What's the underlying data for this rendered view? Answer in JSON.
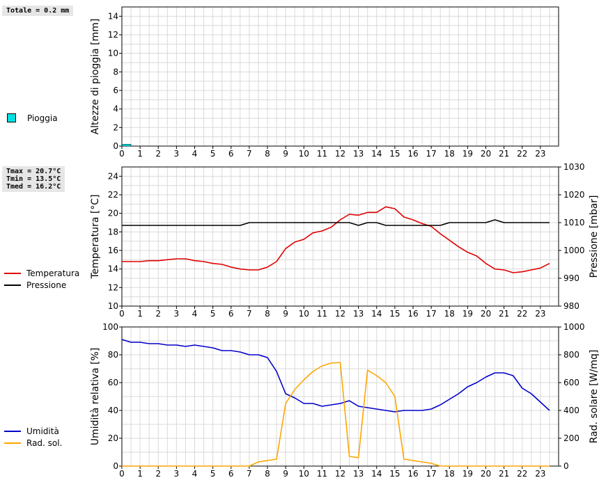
{
  "summary": {
    "rain_total": "Totale = 0.2 mm",
    "tmax": "Tmax = 20.7°C",
    "tmin": "Tmin = 13.5°C",
    "tmed": "Tmed = 16.2°C"
  },
  "legend": {
    "rain": {
      "label": "Pioggia",
      "color": "#00e0e0"
    },
    "temperature": {
      "label": "Temperatura",
      "color": "#e00000"
    },
    "pressure": {
      "label": "Pressione",
      "color": "#000000"
    },
    "humidity": {
      "label": "Umidità",
      "color": "#0000cc"
    },
    "solar": {
      "label": "Rad. sol.",
      "color": "#ffa500"
    }
  },
  "chart_data": [
    {
      "type": "bar",
      "ylabel": "Altezze di pioggia [mm]",
      "xlim": [
        0,
        24
      ],
      "ylim": [
        0,
        15
      ],
      "yticks": [
        0,
        2,
        4,
        6,
        8,
        10,
        12,
        14
      ],
      "xticks": [
        0,
        1,
        2,
        3,
        4,
        5,
        6,
        7,
        8,
        9,
        10,
        11,
        12,
        13,
        14,
        15,
        16,
        17,
        18,
        19,
        20,
        21,
        22,
        23
      ],
      "series": [
        {
          "name": "Pioggia",
          "bars": [
            {
              "x0": 0,
              "x1": 0.5,
              "value": 0.2
            }
          ]
        }
      ]
    },
    {
      "type": "line",
      "ylabel": "Temperatura [°C]",
      "y2label": "Pressione [mbar]",
      "xlim": [
        0,
        24
      ],
      "ylim": [
        10,
        25
      ],
      "y2lim": [
        980,
        1030
      ],
      "yticks": [
        10,
        12,
        14,
        16,
        18,
        20,
        22,
        24
      ],
      "y2ticks": [
        980,
        990,
        1000,
        1010,
        1020,
        1030
      ],
      "xticks": [
        0,
        1,
        2,
        3,
        4,
        5,
        6,
        7,
        8,
        9,
        10,
        11,
        12,
        13,
        14,
        15,
        16,
        17,
        18,
        19,
        20,
        21,
        22,
        23
      ],
      "series": [
        {
          "name": "Temperatura",
          "axis": "left",
          "x": [
            0,
            0.5,
            1,
            1.5,
            2,
            2.5,
            3,
            3.5,
            4,
            4.5,
            5,
            5.5,
            6,
            6.5,
            7,
            7.5,
            8,
            8.5,
            9,
            9.5,
            10,
            10.5,
            11,
            11.5,
            12,
            12.5,
            13,
            13.5,
            14,
            14.5,
            15,
            15.5,
            16,
            16.5,
            17,
            17.5,
            18,
            18.5,
            19,
            19.5,
            20,
            20.5,
            21,
            21.5,
            22,
            22.5,
            23,
            23.5
          ],
          "y": [
            14.8,
            14.8,
            14.8,
            14.9,
            14.9,
            15.0,
            15.1,
            15.1,
            14.9,
            14.8,
            14.6,
            14.5,
            14.2,
            14.0,
            13.9,
            13.9,
            14.2,
            14.8,
            16.2,
            16.9,
            17.2,
            17.9,
            18.1,
            18.5,
            19.3,
            19.9,
            19.8,
            20.1,
            20.1,
            20.7,
            20.5,
            19.6,
            19.3,
            18.9,
            18.6,
            17.8,
            17.1,
            16.4,
            15.8,
            15.4,
            14.6,
            14.0,
            13.9,
            13.6,
            13.7,
            13.9,
            14.1,
            14.6
          ]
        },
        {
          "name": "Pressione",
          "axis": "right",
          "x": [
            0,
            6.5,
            7,
            12,
            12.5,
            13,
            13.5,
            14,
            14.5,
            17.5,
            18,
            20,
            20.5,
            21,
            23.5
          ],
          "y": [
            1009,
            1009,
            1010,
            1010,
            1010,
            1009,
            1010,
            1010,
            1009,
            1009,
            1010,
            1010,
            1011,
            1010,
            1010
          ]
        }
      ]
    },
    {
      "type": "line",
      "ylabel": "Umidità relativa [%]",
      "y2label": "Rad. solare [W/mq]",
      "xlim": [
        0,
        24
      ],
      "ylim": [
        0,
        100
      ],
      "y2lim": [
        0,
        1000
      ],
      "yticks": [
        0,
        20,
        40,
        60,
        80,
        100
      ],
      "y2ticks": [
        0,
        200,
        400,
        600,
        800,
        1000
      ],
      "xticks": [
        0,
        1,
        2,
        3,
        4,
        5,
        6,
        7,
        8,
        9,
        10,
        11,
        12,
        13,
        14,
        15,
        16,
        17,
        18,
        19,
        20,
        21,
        22,
        23
      ],
      "series": [
        {
          "name": "Umidità",
          "axis": "left",
          "x": [
            0,
            0.5,
            1,
            1.5,
            2,
            2.5,
            3,
            3.5,
            4,
            4.5,
            5,
            5.5,
            6,
            6.5,
            7,
            7.5,
            8,
            8.5,
            9,
            9.5,
            10,
            10.5,
            11,
            11.5,
            12,
            12.5,
            13,
            13.5,
            14,
            14.5,
            15,
            15.5,
            16,
            16.5,
            17,
            17.5,
            18,
            18.5,
            19,
            19.5,
            20,
            20.5,
            21,
            21.5,
            22,
            22.5,
            23,
            23.5
          ],
          "y": [
            91,
            89,
            89,
            88,
            88,
            87,
            87,
            86,
            87,
            86,
            85,
            83,
            83,
            82,
            80,
            80,
            78,
            68,
            52,
            49,
            45,
            45,
            43,
            44,
            45,
            47,
            43,
            42,
            41,
            40,
            39,
            40,
            40,
            40,
            41,
            44,
            48,
            52,
            57,
            60,
            64,
            67,
            67,
            65,
            56,
            52,
            46,
            40
          ]
        },
        {
          "name": "Rad. sol.",
          "axis": "right",
          "x": [
            0,
            7,
            7.5,
            8,
            8.5,
            9,
            9.5,
            10,
            10.5,
            11,
            11.5,
            12,
            12.5,
            13,
            13.5,
            14,
            14.5,
            15,
            15.5,
            16,
            16.5,
            17,
            17.5,
            18,
            23.5
          ],
          "y": [
            0,
            0,
            30,
            40,
            50,
            450,
            550,
            620,
            680,
            720,
            740,
            745,
            70,
            60,
            690,
            650,
            600,
            500,
            50,
            40,
            30,
            20,
            0,
            0,
            0
          ]
        }
      ]
    }
  ]
}
